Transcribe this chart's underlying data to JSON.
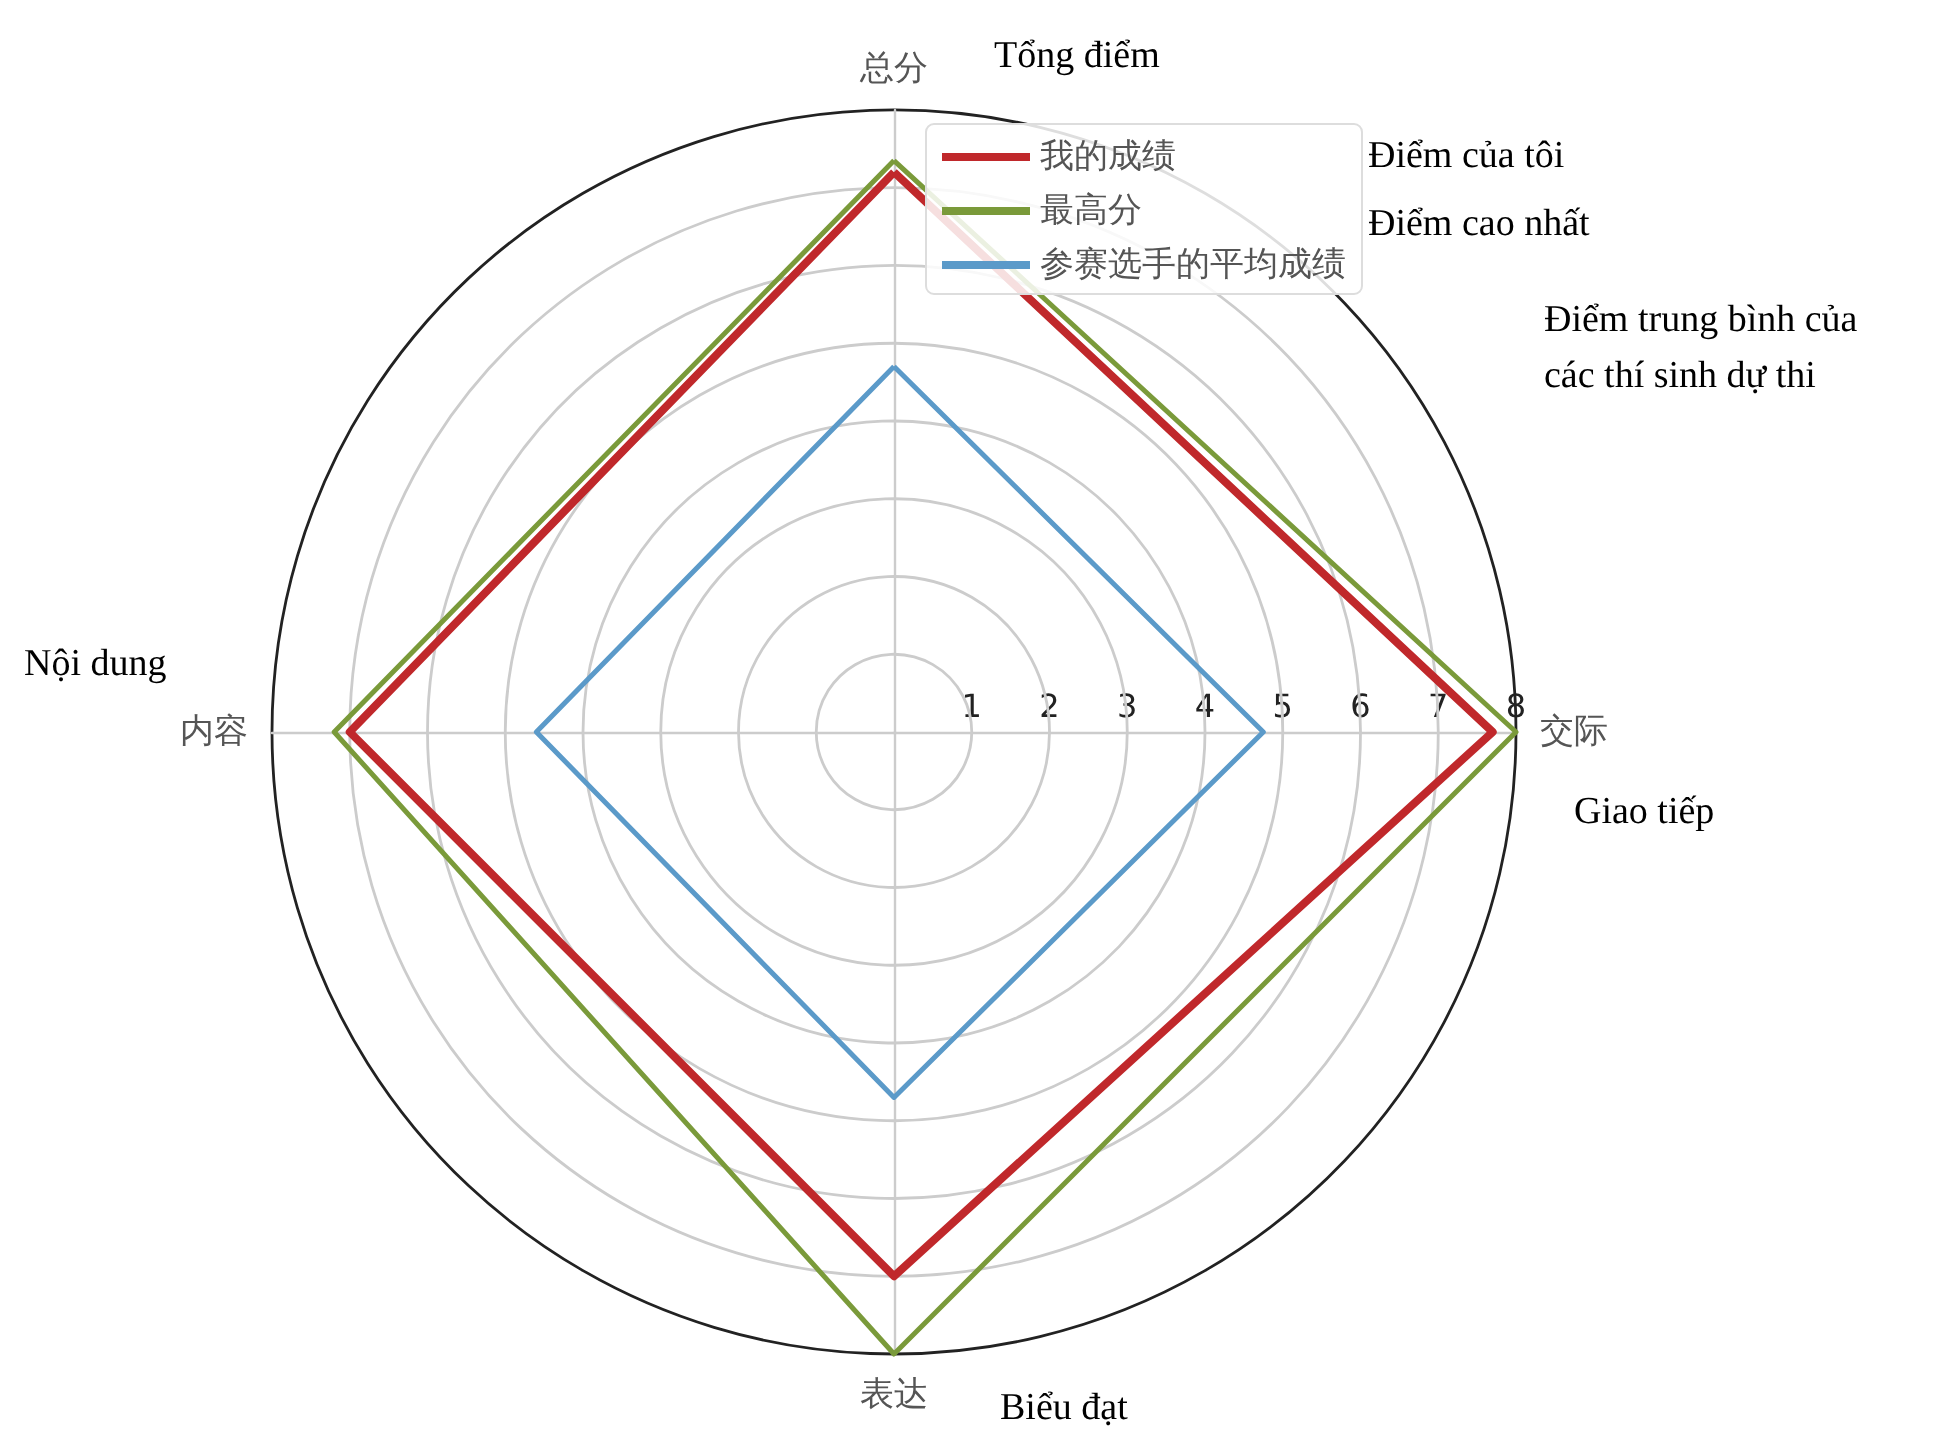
{
  "chart_data": {
    "type": "radar",
    "categories": [
      "总分",
      "交际",
      "表达",
      "内容"
    ],
    "series": [
      {
        "name": "我的成绩",
        "color": "#c0282b",
        "values": [
          7.2,
          7.7,
          7.0,
          7.0
        ]
      },
      {
        "name": "最高分",
        "color": "#7a9a3a",
        "values": [
          7.35,
          8,
          8,
          7.2
        ]
      },
      {
        "name": "参赛选手的平均成绩",
        "color": "#5b9ac9",
        "values": [
          4.7,
          4.75,
          4.7,
          4.6
        ]
      }
    ],
    "ylim": [
      0,
      8
    ],
    "yticks": [
      1,
      2,
      3,
      4,
      5,
      6,
      7,
      8
    ],
    "grid": true,
    "legend": "top right",
    "annotations": [
      "Tổng điểm",
      "Điểm của tôi",
      "Điểm cao nhất",
      "Điểm trung bình của\ncác thí sinh dự thi",
      "Giao tiếp",
      "Biểu đạt",
      "Nội dung"
    ]
  }
}
